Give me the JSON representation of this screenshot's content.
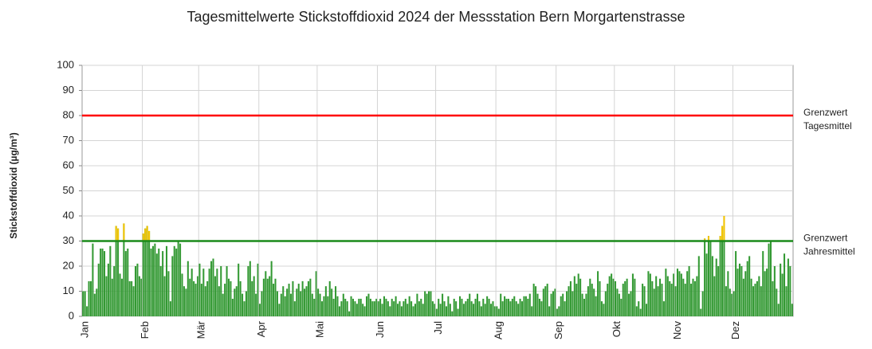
{
  "chart_data": {
    "type": "bar",
    "title": "Tagesmittelwerte Stickstoffdioxid 2024 der Messstation Bern Morgartenstrasse",
    "y_label": "Stickstoffdioxid (µg/m³)",
    "color": "#339933",
    "grid": true,
    "ylim": [
      0,
      100
    ],
    "yticks": [
      0,
      10,
      20,
      30,
      40,
      50,
      60,
      70,
      80,
      90,
      100
    ],
    "categories": [
      "Jan",
      "Feb",
      "Mär",
      "Apr",
      "Mai",
      "Jun",
      "Jul",
      "Aug",
      "Sep",
      "Okt",
      "Nov",
      "Dez"
    ],
    "values": [
      [
        10,
        10,
        4,
        14,
        14,
        29,
        9,
        11,
        21,
        27,
        27,
        26,
        16,
        21,
        28,
        15,
        20,
        36,
        35,
        17,
        15,
        37,
        26,
        27,
        14,
        14,
        12,
        20,
        21,
        16,
        15
      ],
      [
        33,
        35,
        36,
        34,
        27,
        28,
        29,
        25,
        27,
        20,
        26,
        16,
        28,
        18,
        6,
        24,
        28,
        27,
        30,
        29,
        17,
        12,
        11,
        22,
        15,
        19,
        14,
        13,
        16
      ],
      [
        21,
        13,
        19,
        12,
        14,
        19,
        22,
        23,
        16,
        19,
        12,
        20,
        9,
        13,
        20,
        15,
        14,
        7,
        11,
        12,
        21,
        14,
        9,
        6,
        10,
        20,
        22,
        14,
        16,
        9,
        21
      ],
      [
        5,
        10,
        15,
        18,
        15,
        16,
        22,
        13,
        15,
        10,
        5,
        9,
        12,
        8,
        11,
        13,
        9,
        14,
        6,
        11,
        13,
        10,
        14,
        11,
        12,
        14,
        15,
        9,
        7,
        18
      ],
      [
        11,
        9,
        6,
        8,
        12,
        8,
        14,
        11,
        7,
        12,
        8,
        4,
        6,
        9,
        7,
        6,
        2,
        8,
        7,
        6,
        5,
        7,
        7,
        5,
        4,
        8,
        9,
        7,
        6,
        6,
        7
      ],
      [
        6,
        7,
        5,
        8,
        7,
        6,
        4,
        7,
        6,
        8,
        5,
        6,
        4,
        6,
        7,
        5,
        8,
        6,
        4,
        5,
        9,
        6,
        7,
        5,
        10,
        9,
        10,
        10,
        6,
        5
      ],
      [
        3,
        7,
        5,
        9,
        6,
        4,
        8,
        5,
        2,
        7,
        6,
        3,
        8,
        7,
        5,
        6,
        7,
        9,
        6,
        5,
        7,
        9,
        6,
        4,
        7,
        5,
        8,
        7,
        5,
        6,
        4
      ],
      [
        4,
        3,
        9,
        6,
        8,
        7,
        7,
        6,
        7,
        8,
        6,
        5,
        7,
        6,
        8,
        8,
        7,
        9,
        4,
        13,
        12,
        9,
        7,
        6,
        11,
        12,
        13,
        4,
        9,
        10,
        11
      ],
      [
        3,
        4,
        8,
        9,
        6,
        10,
        12,
        14,
        10,
        16,
        13,
        17,
        15,
        9,
        7,
        9,
        12,
        15,
        13,
        11,
        8,
        18,
        14,
        6,
        5,
        10,
        13,
        16,
        17,
        15
      ],
      [
        14,
        11,
        9,
        7,
        13,
        14,
        15,
        9,
        10,
        17,
        15,
        4,
        6,
        3,
        13,
        12,
        5,
        18,
        17,
        14,
        11,
        16,
        12,
        15,
        13,
        6,
        19,
        16,
        14,
        13,
        17
      ],
      [
        12,
        19,
        18,
        17,
        15,
        13,
        18,
        20,
        13,
        15,
        14,
        16,
        24,
        3,
        10,
        31,
        25,
        32,
        30,
        24,
        16,
        23,
        20,
        32,
        36,
        40,
        12,
        18,
        11,
        9
      ],
      [
        10,
        26,
        19,
        21,
        20,
        15,
        18,
        22,
        24,
        15,
        12,
        13,
        14,
        16,
        12,
        26,
        18,
        19,
        29,
        30,
        14,
        20,
        11,
        5,
        21,
        17,
        25,
        12,
        23,
        20,
        5
      ]
    ],
    "reference_lines": [
      {
        "value": 80,
        "label": [
          "Grenzwert",
          "Tagesmittel"
        ],
        "color": "#ff0000"
      },
      {
        "value": 30,
        "label": [
          "Grenzwert",
          "Jahresmittel"
        ],
        "color": "#1a8a1a",
        "exceed_color": "#f5c400"
      }
    ]
  }
}
